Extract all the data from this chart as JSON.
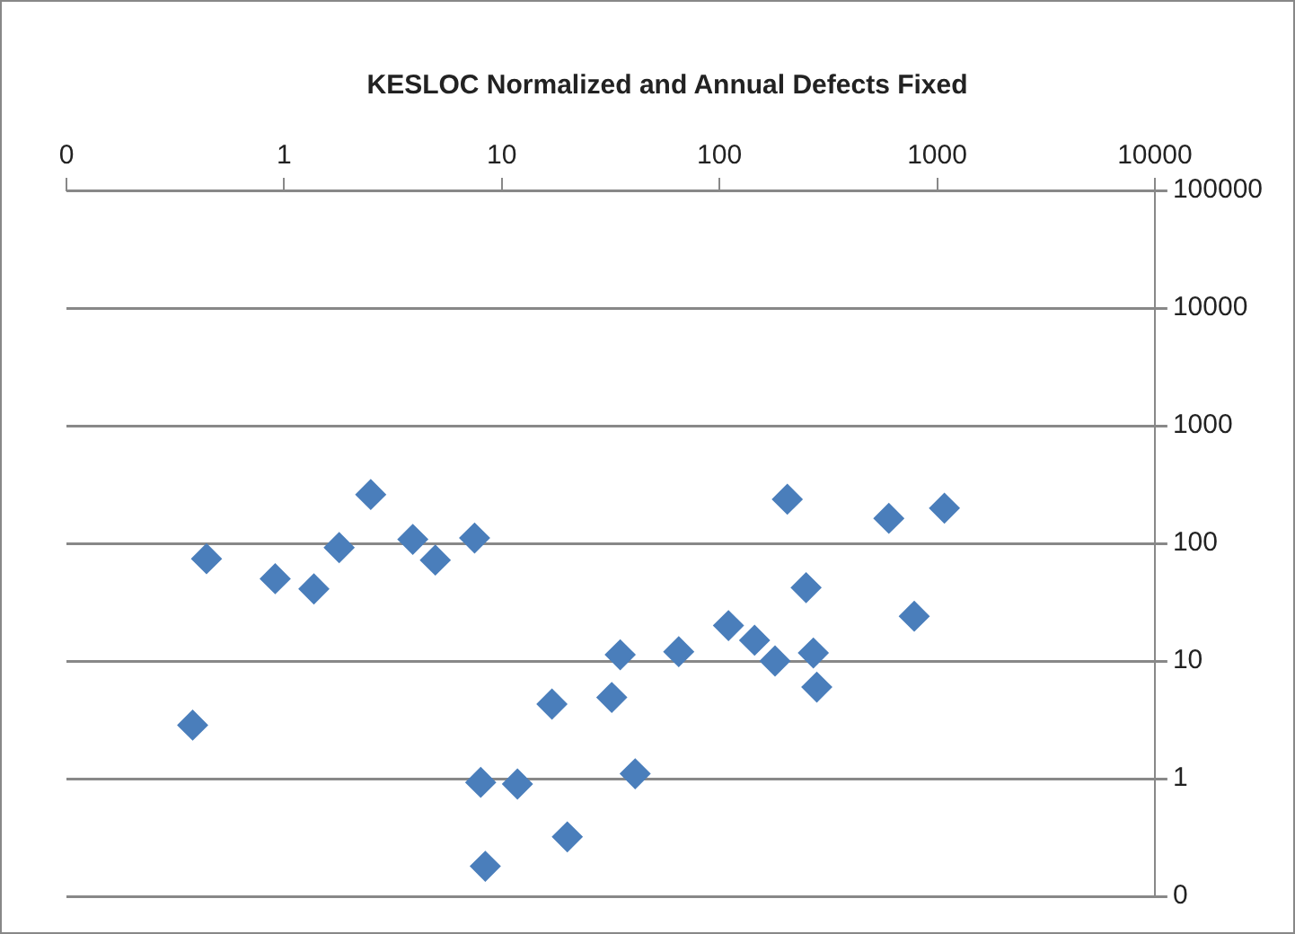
{
  "chart_data": {
    "type": "scatter",
    "title": "KESLOC Normalized and Annual Defects Fixed",
    "x": [
      0.44,
      0.38,
      0.91,
      1.37,
      1.79,
      2.5,
      3.9,
      4.95,
      7.5,
      8.0,
      8.4,
      11.8,
      17,
      20,
      32,
      35,
      41,
      65,
      110,
      145,
      180,
      205,
      250,
      270,
      280,
      600,
      785,
      1080
    ],
    "series": [
      {
        "color": "#4a7ebb",
        "values": [
          74,
          2.85,
          50,
          41,
          92,
          260,
          108,
          72,
          111,
          0.93,
          0.18,
          0.9,
          4.3,
          0.32,
          4.9,
          11.3,
          1.1,
          12,
          20,
          15,
          10,
          237,
          42,
          11.7,
          6.0,
          163,
          24,
          199
        ]
      }
    ],
    "log": "xy",
    "xlim": [
      0.1,
      10000
    ],
    "ylim": [
      0.1,
      100000
    ],
    "xticks": [
      {
        "value": 0.1,
        "label": "0"
      },
      1,
      10,
      100,
      1000,
      10000
    ],
    "yticks": [
      {
        "value": 0.1,
        "label": "0"
      },
      1,
      10,
      100,
      1000,
      10000,
      100000
    ],
    "grid": "y",
    "marker": "diamond"
  }
}
